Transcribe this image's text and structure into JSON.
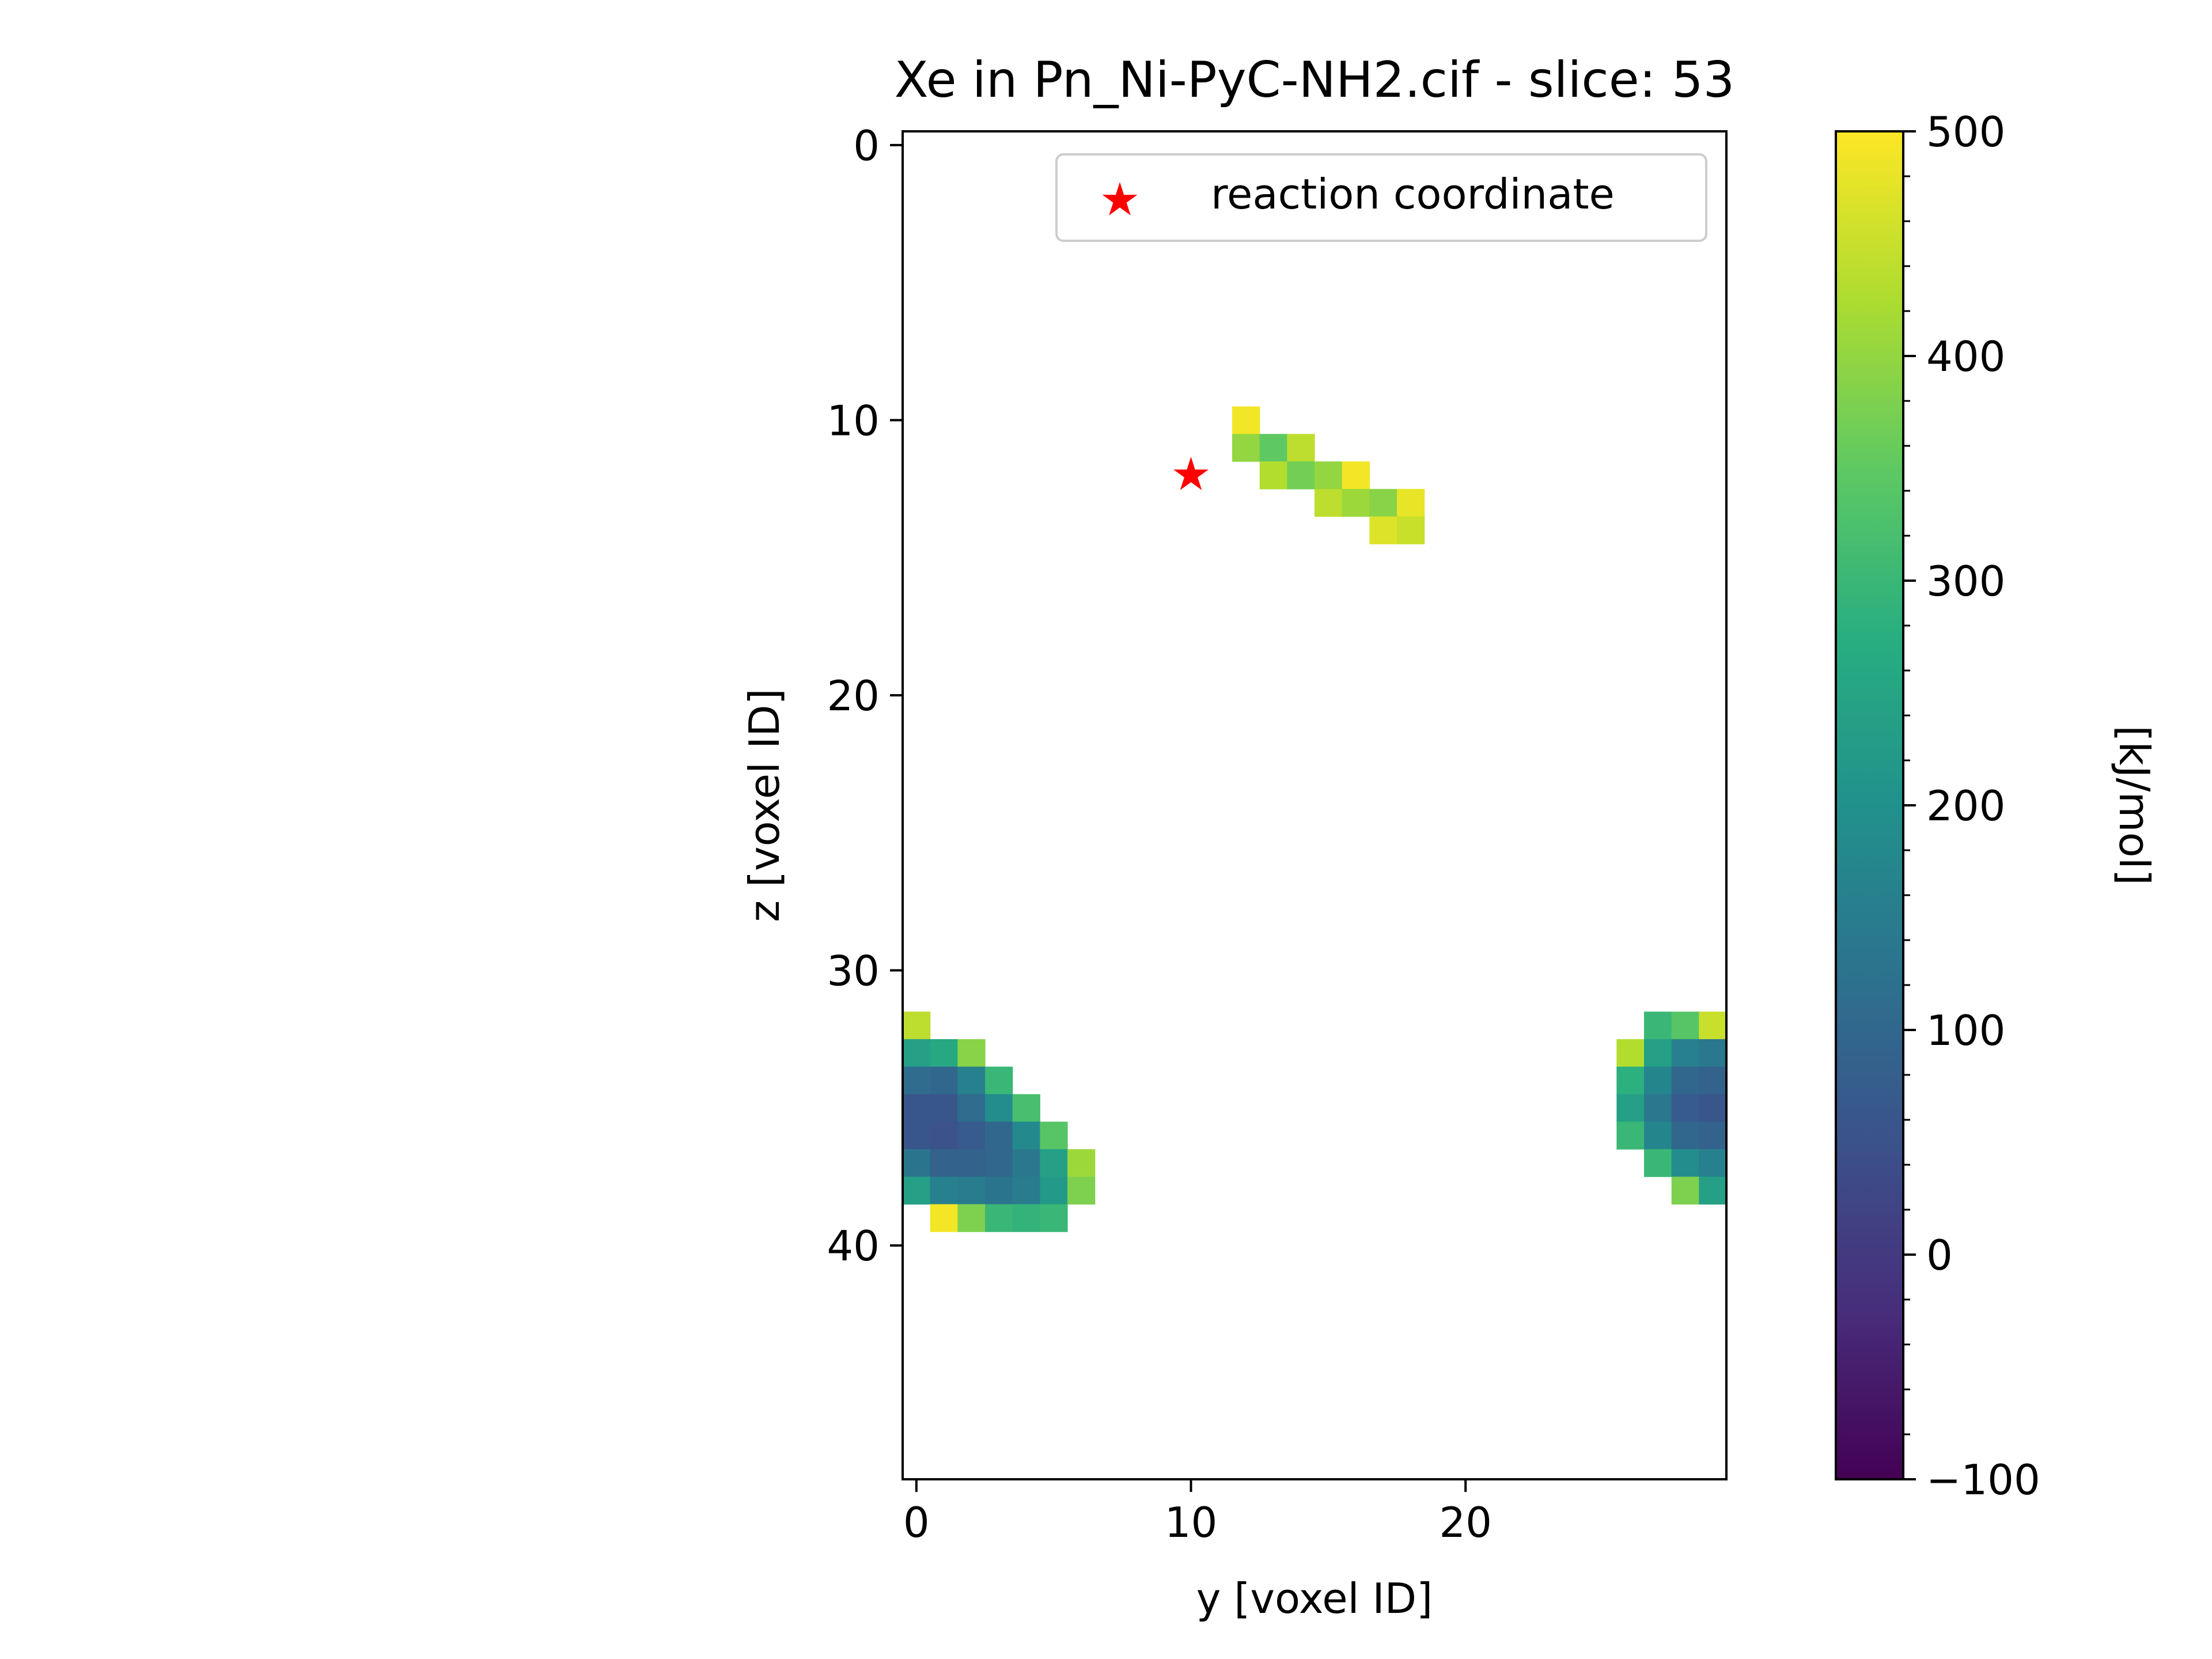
{
  "chart_data": {
    "type": "heatmap",
    "title": "Xe in Pn_Ni-PyC-NH2.cif - slice: 53",
    "xlabel": "y [voxel ID]",
    "ylabel": "z [voxel ID]",
    "xlim": [
      -0.5,
      29.5
    ],
    "ylim": [
      48.5,
      -0.5
    ],
    "y_axis_inverted": true,
    "xticks": [
      0,
      10,
      20
    ],
    "yticks": [
      0,
      10,
      20,
      30,
      40
    ],
    "colorbar": {
      "label": "[kJ/mol]",
      "colormap": "viridis",
      "vmin": -100,
      "vmax": 500,
      "ticks": [
        -100,
        0,
        100,
        200,
        300,
        400,
        500
      ],
      "tick_labels": [
        "−100",
        "0",
        "100",
        "200",
        "300",
        "400",
        "500"
      ]
    },
    "legend": {
      "entries": [
        "reaction coordinate"
      ],
      "location": "upper right"
    },
    "reaction_coordinate": {
      "y": 10,
      "z": 12,
      "marker": "star",
      "color": "#ff0000"
    },
    "grid": false,
    "cells": [
      [
        12,
        10,
        490
      ],
      [
        12,
        11,
        400
      ],
      [
        13,
        11,
        350
      ],
      [
        14,
        11,
        440
      ],
      [
        13,
        12,
        430
      ],
      [
        14,
        12,
        370
      ],
      [
        15,
        12,
        400
      ],
      [
        16,
        12,
        490
      ],
      [
        15,
        13,
        440
      ],
      [
        16,
        13,
        410
      ],
      [
        17,
        13,
        390
      ],
      [
        18,
        13,
        480
      ],
      [
        17,
        14,
        470
      ],
      [
        18,
        14,
        450
      ],
      [
        0,
        32,
        440
      ],
      [
        0,
        33,
        240
      ],
      [
        1,
        33,
        260
      ],
      [
        2,
        33,
        390
      ],
      [
        0,
        34,
        110
      ],
      [
        1,
        34,
        100
      ],
      [
        2,
        34,
        160
      ],
      [
        3,
        34,
        300
      ],
      [
        0,
        35,
        60
      ],
      [
        1,
        35,
        60
      ],
      [
        2,
        35,
        110
      ],
      [
        3,
        35,
        190
      ],
      [
        4,
        35,
        320
      ],
      [
        0,
        36,
        60
      ],
      [
        1,
        36,
        50
      ],
      [
        2,
        36,
        70
      ],
      [
        3,
        36,
        100
      ],
      [
        4,
        36,
        180
      ],
      [
        5,
        36,
        340
      ],
      [
        0,
        37,
        130
      ],
      [
        1,
        37,
        90
      ],
      [
        2,
        37,
        90
      ],
      [
        3,
        37,
        100
      ],
      [
        4,
        37,
        140
      ],
      [
        5,
        37,
        240
      ],
      [
        6,
        37,
        410
      ],
      [
        0,
        38,
        240
      ],
      [
        1,
        38,
        160
      ],
      [
        2,
        38,
        150
      ],
      [
        3,
        38,
        130
      ],
      [
        4,
        38,
        150
      ],
      [
        5,
        38,
        220
      ],
      [
        6,
        38,
        380
      ],
      [
        1,
        39,
        490
      ],
      [
        2,
        39,
        380
      ],
      [
        3,
        39,
        300
      ],
      [
        4,
        39,
        290
      ],
      [
        5,
        39,
        300
      ],
      [
        27,
        32,
        300
      ],
      [
        28,
        32,
        340
      ],
      [
        29,
        32,
        450
      ],
      [
        26,
        33,
        430
      ],
      [
        27,
        33,
        240
      ],
      [
        28,
        33,
        160
      ],
      [
        29,
        33,
        140
      ],
      [
        26,
        34,
        280
      ],
      [
        27,
        34,
        170
      ],
      [
        28,
        34,
        100
      ],
      [
        29,
        34,
        90
      ],
      [
        26,
        35,
        240
      ],
      [
        27,
        35,
        140
      ],
      [
        28,
        35,
        70
      ],
      [
        29,
        35,
        60
      ],
      [
        26,
        36,
        300
      ],
      [
        27,
        36,
        170
      ],
      [
        28,
        36,
        100
      ],
      [
        29,
        36,
        90
      ],
      [
        27,
        37,
        300
      ],
      [
        28,
        37,
        190
      ],
      [
        29,
        37,
        160
      ],
      [
        28,
        38,
        380
      ],
      [
        29,
        38,
        240
      ]
    ]
  }
}
